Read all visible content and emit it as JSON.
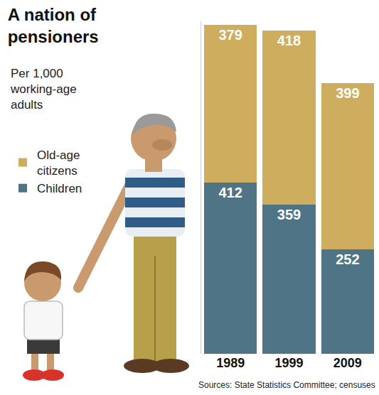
{
  "chart_data": {
    "type": "bar",
    "title": "A nation of pensioners",
    "subtitle": "Per 1,000 working-age adults",
    "categories": [
      "1989",
      "1999",
      "2009"
    ],
    "series": [
      {
        "name": "Children",
        "color": "#4f7486",
        "values": [
          412,
          359,
          252
        ]
      },
      {
        "name": "Old-age citizens",
        "color": "#cfad5f",
        "values": [
          379,
          418,
          399
        ]
      }
    ],
    "stacked": true,
    "data_labels": true,
    "legend": "left",
    "tick_labels": "x",
    "grid": false,
    "ylim": [
      0,
      800
    ],
    "yticks": [],
    "annotations": [
      "Sources: State Statistics Committee; censuses"
    ]
  }
}
